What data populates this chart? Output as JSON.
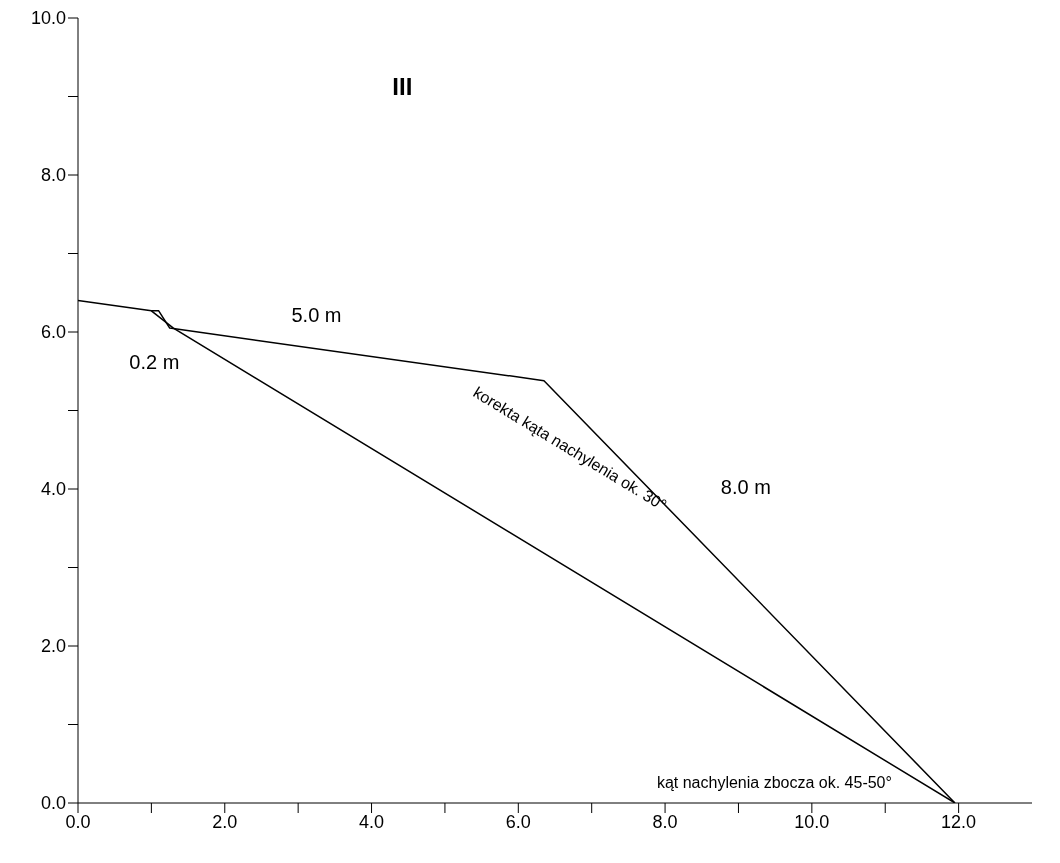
{
  "chart_data": {
    "type": "line",
    "marker": "none",
    "line_style": "solid",
    "xlim": [
      0,
      13
    ],
    "ylim": [
      0,
      10
    ],
    "xticks": [
      {
        "value": 0,
        "label": "0.0"
      },
      {
        "value": 1,
        "label": null
      },
      {
        "value": 2,
        "label": "2.0"
      },
      {
        "value": 3,
        "label": null
      },
      {
        "value": 4,
        "label": "4.0"
      },
      {
        "value": 5,
        "label": null
      },
      {
        "value": 6,
        "label": "6.0"
      },
      {
        "value": 7,
        "label": null
      },
      {
        "value": 8,
        "label": "8.0"
      },
      {
        "value": 9,
        "label": null
      },
      {
        "value": 10,
        "label": "10.0"
      },
      {
        "value": 11,
        "label": null
      },
      {
        "value": 12,
        "label": "12.0"
      }
    ],
    "yticks": [
      {
        "value": 0,
        "label": "0.0"
      },
      {
        "value": 1,
        "label": null
      },
      {
        "value": 2,
        "label": "2.0"
      },
      {
        "value": 3,
        "label": null
      },
      {
        "value": 4,
        "label": "4.0"
      },
      {
        "value": 5,
        "label": null
      },
      {
        "value": 6,
        "label": "6.0"
      },
      {
        "value": 7,
        "label": null
      },
      {
        "value": 8,
        "label": "8.0"
      },
      {
        "value": 9,
        "label": null
      },
      {
        "value": 10,
        "label": "10.0"
      }
    ],
    "series": [
      {
        "color": "#000000",
        "x": [
          0,
          1.0,
          1.1,
          1.25,
          6.35,
          11.95
        ],
        "values": [
          6.4,
          6.27,
          6.27,
          6.05,
          5.38,
          0
        ]
      },
      {
        "color": "#000000",
        "x": [
          1.0,
          1.3,
          11.95
        ],
        "values": [
          6.27,
          6.05,
          0
        ]
      }
    ],
    "annotations": [
      "III",
      "0.2 m",
      "5.0 m",
      "8.0 m",
      "korekta kąta nachylenia ok. 30°",
      "kąt nachylenia zbocza ok. 45-50°"
    ]
  }
}
